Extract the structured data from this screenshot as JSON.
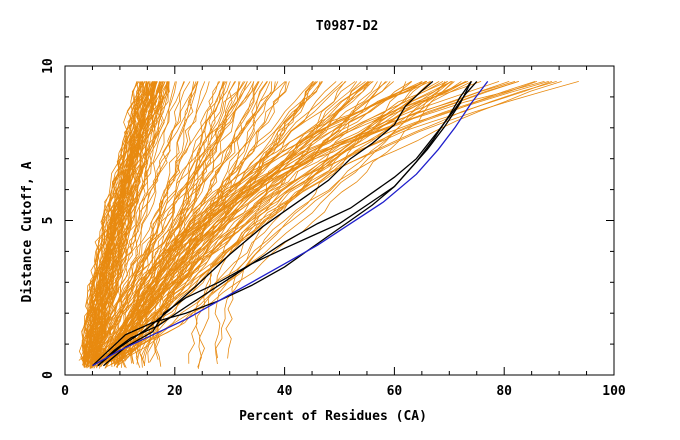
{
  "chart_data": {
    "type": "line",
    "title": "T0987-D2",
    "xlabel": "Percent of Residues (CA)",
    "ylabel": "Distance Cutoff, A",
    "xlim": [
      0,
      100
    ],
    "ylim": [
      0,
      10
    ],
    "xticks": [
      0,
      20,
      40,
      60,
      80,
      100
    ],
    "yticks": [
      0,
      5,
      10
    ],
    "grid": false,
    "colors": {
      "background_curves": "#e88a10",
      "highlight_black": "#000000",
      "highlight_blue": "#1f1fcc",
      "axes": "#000000"
    },
    "series": [
      {
        "role": "highlight",
        "color": "#000000",
        "points": [
          [
            5,
            0.3
          ],
          [
            8,
            0.8
          ],
          [
            11,
            1.3
          ],
          [
            16,
            1.7
          ],
          [
            22,
            2.0
          ],
          [
            28,
            2.4
          ],
          [
            34,
            2.9
          ],
          [
            40,
            3.5
          ],
          [
            44,
            4.0
          ],
          [
            48,
            4.5
          ],
          [
            52,
            5.0
          ],
          [
            56,
            5.5
          ],
          [
            60,
            6.1
          ],
          [
            63,
            6.7
          ],
          [
            66,
            7.3
          ],
          [
            69,
            8.0
          ],
          [
            72,
            8.8
          ],
          [
            74,
            9.5
          ]
        ]
      },
      {
        "role": "highlight",
        "color": "#000000",
        "points": [
          [
            6,
            0.3
          ],
          [
            9,
            0.8
          ],
          [
            12,
            1.2
          ],
          [
            17,
            1.6
          ],
          [
            22,
            2.2
          ],
          [
            28,
            2.9
          ],
          [
            34,
            3.6
          ],
          [
            40,
            4.3
          ],
          [
            46,
            4.9
          ],
          [
            52,
            5.4
          ],
          [
            56,
            5.9
          ],
          [
            60,
            6.4
          ],
          [
            64,
            7.0
          ],
          [
            68,
            7.9
          ],
          [
            71,
            8.6
          ],
          [
            73,
            9.1
          ],
          [
            75,
            9.5
          ]
        ]
      },
      {
        "role": "highlight",
        "color": "#000000",
        "points": [
          [
            6,
            0.3
          ],
          [
            10,
            0.9
          ],
          [
            15,
            1.5
          ],
          [
            19,
            2.1
          ],
          [
            24,
            2.9
          ],
          [
            30,
            3.9
          ],
          [
            36,
            4.8
          ],
          [
            40,
            5.3
          ],
          [
            44,
            5.8
          ],
          [
            48,
            6.3
          ],
          [
            52,
            7.0
          ],
          [
            56,
            7.5
          ],
          [
            60,
            8.1
          ],
          [
            62,
            8.7
          ],
          [
            65,
            9.2
          ],
          [
            67,
            9.5
          ]
        ]
      },
      {
        "role": "highlight",
        "color": "#000000",
        "points": [
          [
            7,
            0.3
          ],
          [
            11,
            0.9
          ],
          [
            16,
            1.4
          ],
          [
            18,
            2.0
          ],
          [
            22,
            2.5
          ],
          [
            28,
            3.0
          ],
          [
            34,
            3.6
          ],
          [
            40,
            4.1
          ],
          [
            45,
            4.5
          ],
          [
            50,
            4.9
          ],
          [
            55,
            5.5
          ],
          [
            60,
            6.1
          ],
          [
            64,
            6.9
          ],
          [
            67,
            7.6
          ],
          [
            70,
            8.4
          ],
          [
            72,
            9.0
          ],
          [
            74,
            9.5
          ]
        ]
      },
      {
        "role": "highlight",
        "color": "#1f1fcc",
        "points": [
          [
            5,
            0.3
          ],
          [
            10,
            0.8
          ],
          [
            16,
            1.3
          ],
          [
            22,
            1.8
          ],
          [
            28,
            2.4
          ],
          [
            34,
            3.0
          ],
          [
            40,
            3.6
          ],
          [
            46,
            4.2
          ],
          [
            52,
            4.9
          ],
          [
            58,
            5.6
          ],
          [
            64,
            6.5
          ],
          [
            68,
            7.3
          ],
          [
            71,
            8.0
          ],
          [
            74,
            8.8
          ],
          [
            77,
            9.5
          ]
        ]
      }
    ]
  }
}
